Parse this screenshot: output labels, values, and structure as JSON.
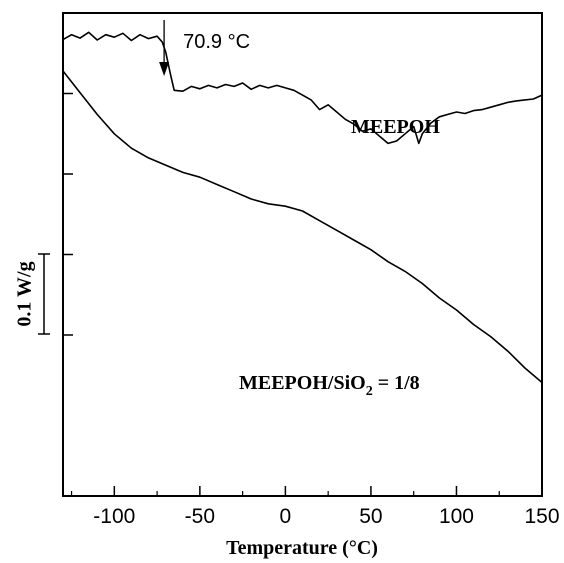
{
  "chart_data": {
    "type": "line",
    "xlabel": "Temperature (°C)",
    "ylabel": "0.1 W/g",
    "xlim": [
      -130,
      150
    ],
    "xticks": [
      -100,
      -50,
      0,
      50,
      100,
      150
    ],
    "xtick_labels": [
      "-100",
      "-50",
      "0",
      "50",
      "100",
      "150"
    ],
    "minor_xticks": [
      -125,
      -75,
      -25,
      25,
      75,
      125
    ],
    "y_tick_count": 4,
    "grid": false,
    "scale_bar": "0.1 W/g",
    "annotation": {
      "text": "70.9 °C",
      "x": -70.9
    },
    "series": [
      {
        "name": "MEEPOH",
        "label_main": "MEEPOH",
        "x": [
          -130,
          -125,
          -120,
          -115,
          -110,
          -105,
          -100,
          -95,
          -90,
          -85,
          -80,
          -75,
          -72,
          -70,
          -67,
          -65,
          -60,
          -55,
          -50,
          -45,
          -40,
          -35,
          -30,
          -25,
          -20,
          -15,
          -10,
          -5,
          0,
          5,
          10,
          15,
          20,
          25,
          30,
          35,
          40,
          45,
          50,
          55,
          60,
          65,
          70,
          75,
          78,
          80,
          85,
          90,
          95,
          100,
          105,
          110,
          115,
          120,
          125,
          130,
          135,
          140,
          145,
          150
        ],
        "y": [
          0.945,
          0.955,
          0.948,
          0.96,
          0.944,
          0.955,
          0.95,
          0.958,
          0.943,
          0.955,
          0.947,
          0.952,
          0.94,
          0.92,
          0.87,
          0.84,
          0.838,
          0.848,
          0.843,
          0.85,
          0.845,
          0.852,
          0.848,
          0.855,
          0.842,
          0.85,
          0.845,
          0.85,
          0.845,
          0.84,
          0.83,
          0.82,
          0.8,
          0.81,
          0.795,
          0.78,
          0.77,
          0.755,
          0.76,
          0.745,
          0.73,
          0.735,
          0.75,
          0.765,
          0.73,
          0.75,
          0.772,
          0.785,
          0.79,
          0.795,
          0.792,
          0.798,
          0.8,
          0.805,
          0.81,
          0.815,
          0.818,
          0.82,
          0.822,
          0.83
        ]
      },
      {
        "name": "MEEPOH/SiO2 = 1/8",
        "label_main": "MEEPOH/SiO",
        "label_sub": "2",
        "label_tail": " = 1/8",
        "x": [
          -130,
          -120,
          -110,
          -100,
          -90,
          -80,
          -70,
          -60,
          -50,
          -40,
          -30,
          -20,
          -10,
          0,
          10,
          20,
          30,
          40,
          50,
          60,
          70,
          80,
          90,
          100,
          110,
          120,
          130,
          140,
          150
        ],
        "y": [
          0.88,
          0.835,
          0.79,
          0.75,
          0.72,
          0.7,
          0.685,
          0.67,
          0.66,
          0.645,
          0.63,
          0.615,
          0.605,
          0.6,
          0.59,
          0.57,
          0.55,
          0.53,
          0.51,
          0.485,
          0.465,
          0.44,
          0.41,
          0.385,
          0.355,
          0.33,
          0.3,
          0.265,
          0.235
        ]
      }
    ]
  }
}
